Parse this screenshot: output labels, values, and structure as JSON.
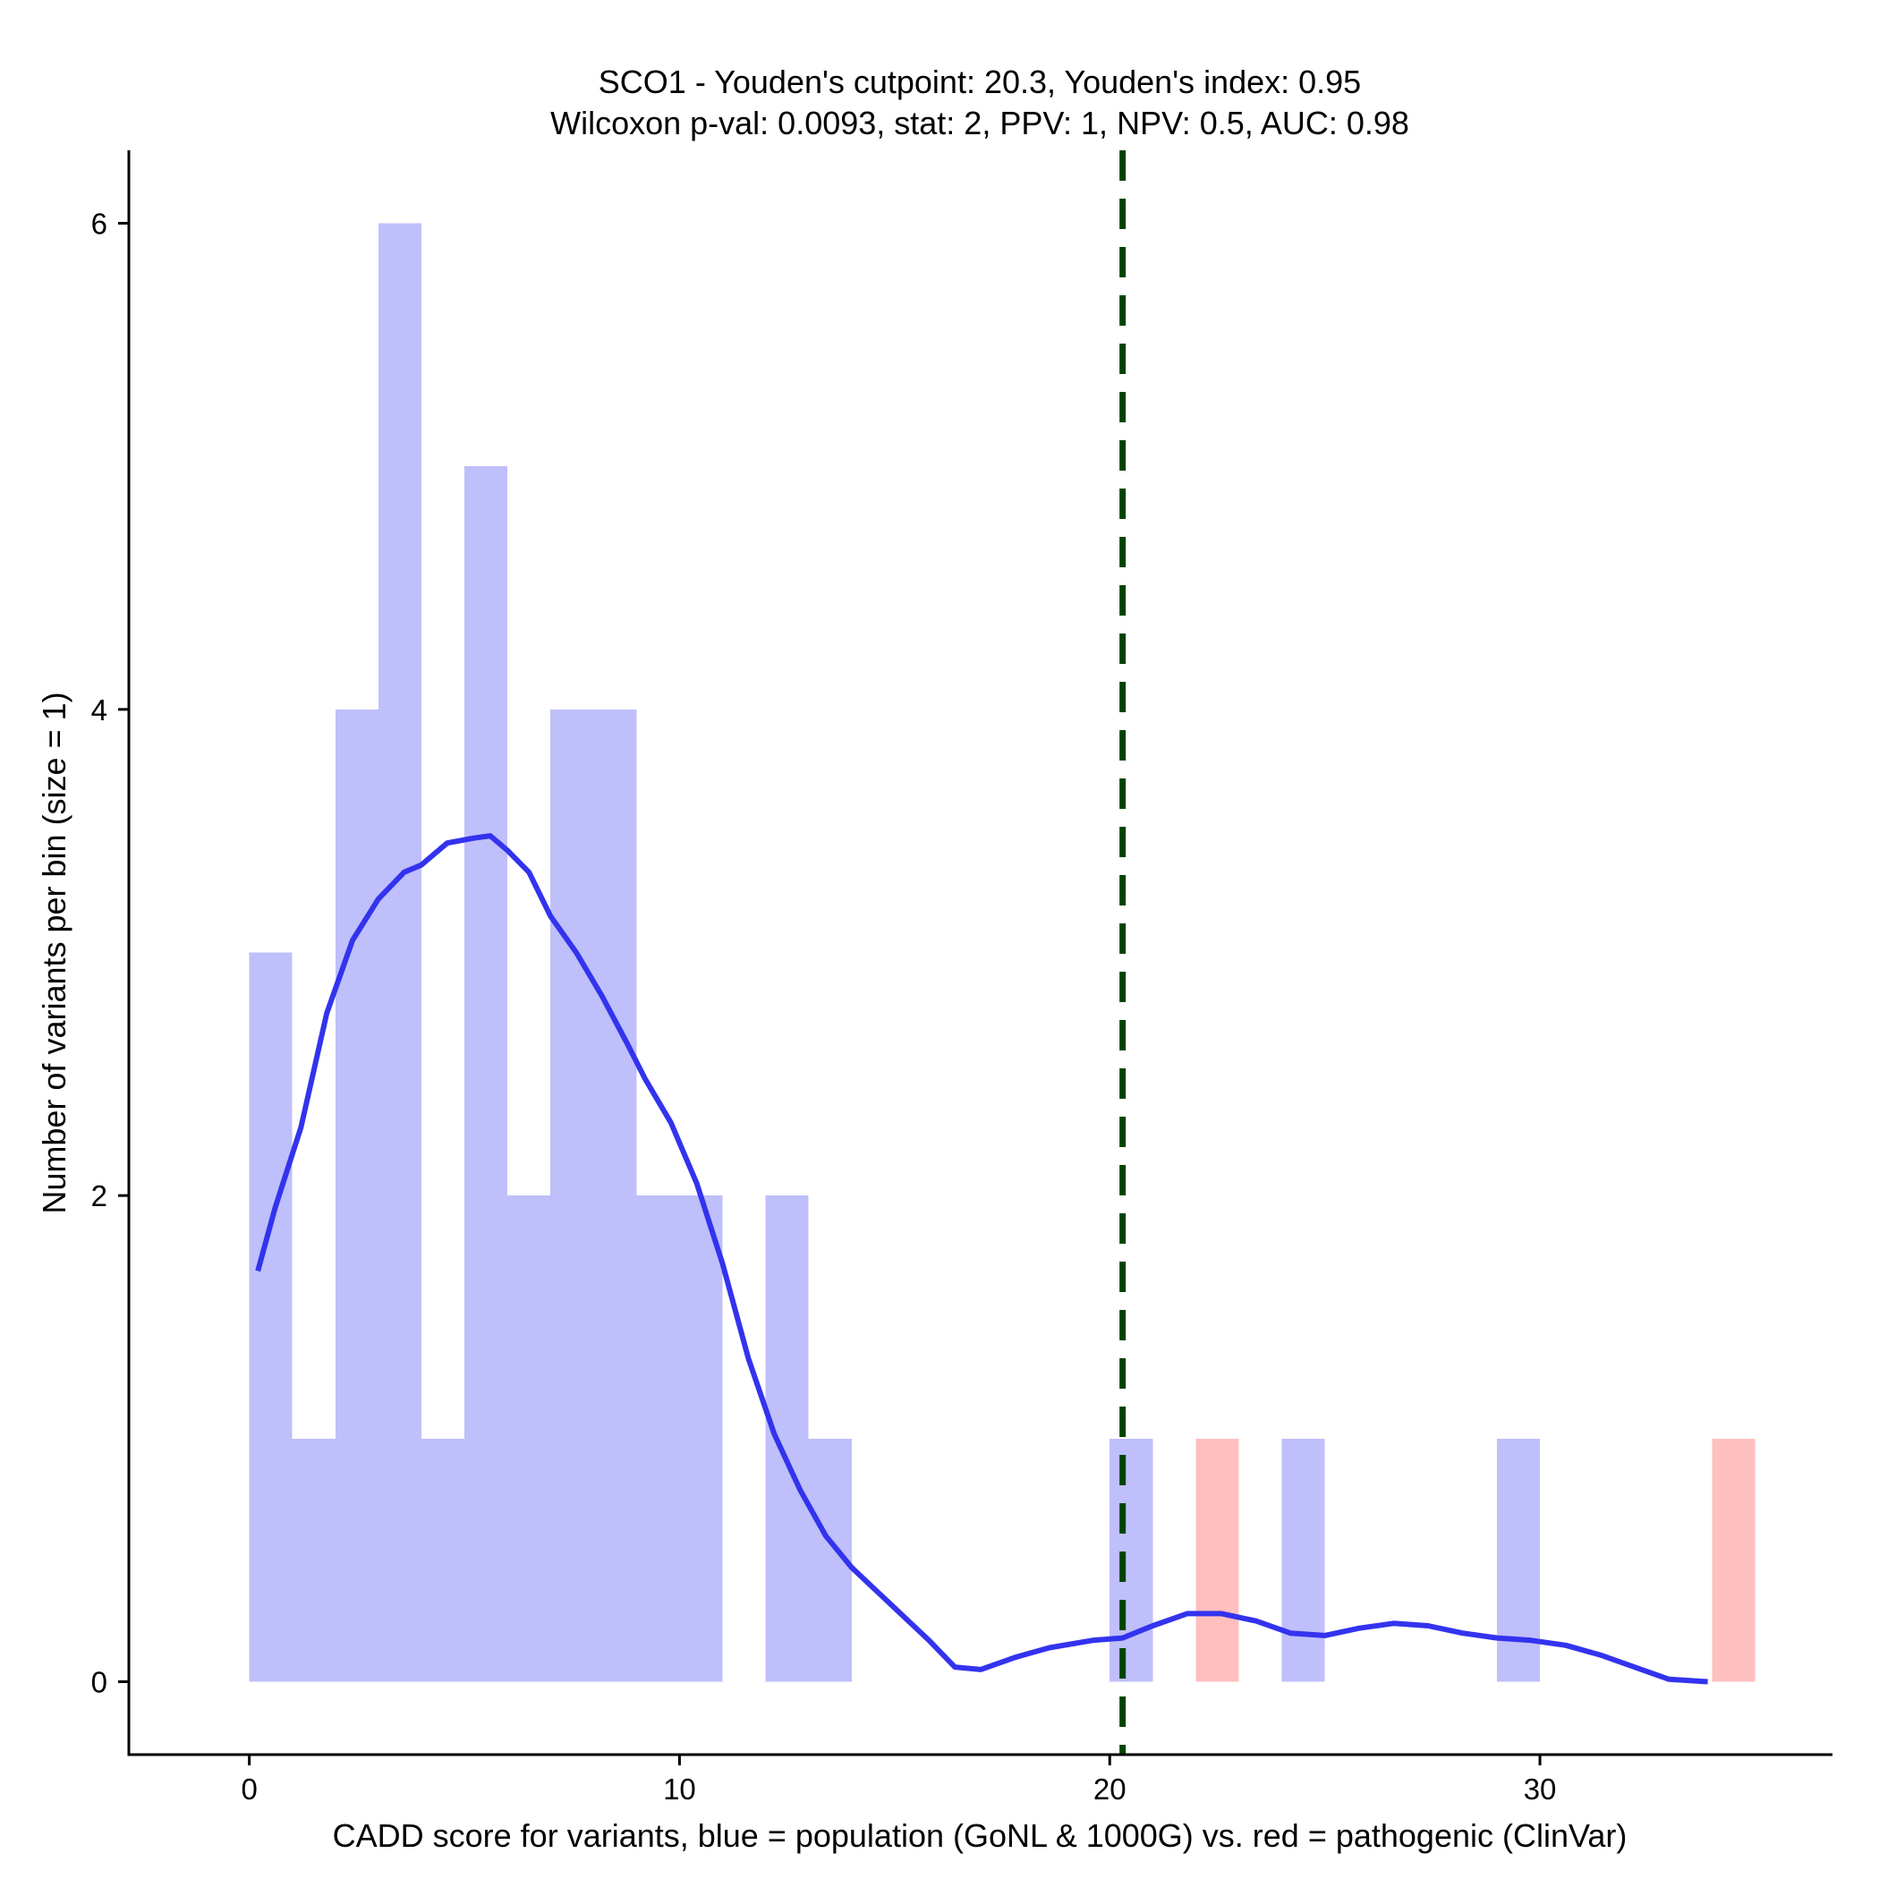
{
  "chart_data": {
    "type": "bar",
    "title_lines": [
      "SCO1 - Youden's cutpoint: 20.3, Youden's index: 0.95",
      "Wilcoxon p-val: 0.0093, stat: 2, PPV: 1, NPV: 0.5, AUC: 0.98"
    ],
    "xlabel": "CADD score for variants, blue = population (GoNL & 1000G) vs. red = pathogenic (ClinVar)",
    "ylabel": "Number of variants per bin (size = 1)",
    "xlim": [
      -2.8,
      36.8
    ],
    "ylim": [
      -0.3,
      6.3
    ],
    "xticks": [
      0,
      10,
      20,
      30
    ],
    "yticks": [
      0,
      2,
      4,
      6
    ],
    "bin_width": 1,
    "series": [
      {
        "name": "population",
        "color": "#bfbffb",
        "bins": [
          {
            "x0": 0,
            "count": 3
          },
          {
            "x0": 1,
            "count": 1
          },
          {
            "x0": 2,
            "count": 4
          },
          {
            "x0": 3,
            "count": 6
          },
          {
            "x0": 4,
            "count": 1
          },
          {
            "x0": 5,
            "count": 5
          },
          {
            "x0": 6,
            "count": 2
          },
          {
            "x0": 7,
            "count": 4
          },
          {
            "x0": 8,
            "count": 4
          },
          {
            "x0": 9,
            "count": 2
          },
          {
            "x0": 10,
            "count": 2
          },
          {
            "x0": 12,
            "count": 2
          },
          {
            "x0": 13,
            "count": 1
          },
          {
            "x0": 20,
            "count": 1
          },
          {
            "x0": 24,
            "count": 1
          },
          {
            "x0": 29,
            "count": 1
          }
        ]
      },
      {
        "name": "pathogenic",
        "color": "#ffbfbf",
        "bins": [
          {
            "x0": 22,
            "count": 1
          },
          {
            "x0": 34,
            "count": 1
          }
        ]
      }
    ],
    "density_curve": {
      "color": "#3333ee",
      "points": [
        [
          0.2,
          1.69
        ],
        [
          0.6,
          1.95
        ],
        [
          1.2,
          2.28
        ],
        [
          1.8,
          2.75
        ],
        [
          2.4,
          3.05
        ],
        [
          3.0,
          3.22
        ],
        [
          3.6,
          3.33
        ],
        [
          4.0,
          3.36
        ],
        [
          4.6,
          3.45
        ],
        [
          5.2,
          3.47
        ],
        [
          5.6,
          3.48
        ],
        [
          6.0,
          3.42
        ],
        [
          6.5,
          3.33
        ],
        [
          7.0,
          3.15
        ],
        [
          7.6,
          3.0
        ],
        [
          8.2,
          2.82
        ],
        [
          8.8,
          2.62
        ],
        [
          9.2,
          2.48
        ],
        [
          9.8,
          2.3
        ],
        [
          10.4,
          2.05
        ],
        [
          11.0,
          1.72
        ],
        [
          11.6,
          1.33
        ],
        [
          12.2,
          1.02
        ],
        [
          12.8,
          0.79
        ],
        [
          13.4,
          0.6
        ],
        [
          14.0,
          0.47
        ],
        [
          14.6,
          0.37
        ],
        [
          15.2,
          0.27
        ],
        [
          15.8,
          0.17
        ],
        [
          16.4,
          0.06
        ],
        [
          17.0,
          0.05
        ],
        [
          17.8,
          0.1
        ],
        [
          18.6,
          0.14
        ],
        [
          19.6,
          0.17
        ],
        [
          20.3,
          0.18
        ],
        [
          21.0,
          0.23
        ],
        [
          21.8,
          0.28
        ],
        [
          22.6,
          0.28
        ],
        [
          23.4,
          0.25
        ],
        [
          24.2,
          0.2
        ],
        [
          25.0,
          0.19
        ],
        [
          25.8,
          0.22
        ],
        [
          26.6,
          0.24
        ],
        [
          27.4,
          0.23
        ],
        [
          28.2,
          0.2
        ],
        [
          29.0,
          0.18
        ],
        [
          29.8,
          0.17
        ],
        [
          30.6,
          0.15
        ],
        [
          31.4,
          0.11
        ],
        [
          32.2,
          0.06
        ],
        [
          33.0,
          0.01
        ],
        [
          33.9,
          0.0
        ]
      ]
    },
    "cutpoint": {
      "x": 20.3,
      "color": "#004400",
      "style": "dashed"
    },
    "grid": false,
    "legend": "none"
  }
}
